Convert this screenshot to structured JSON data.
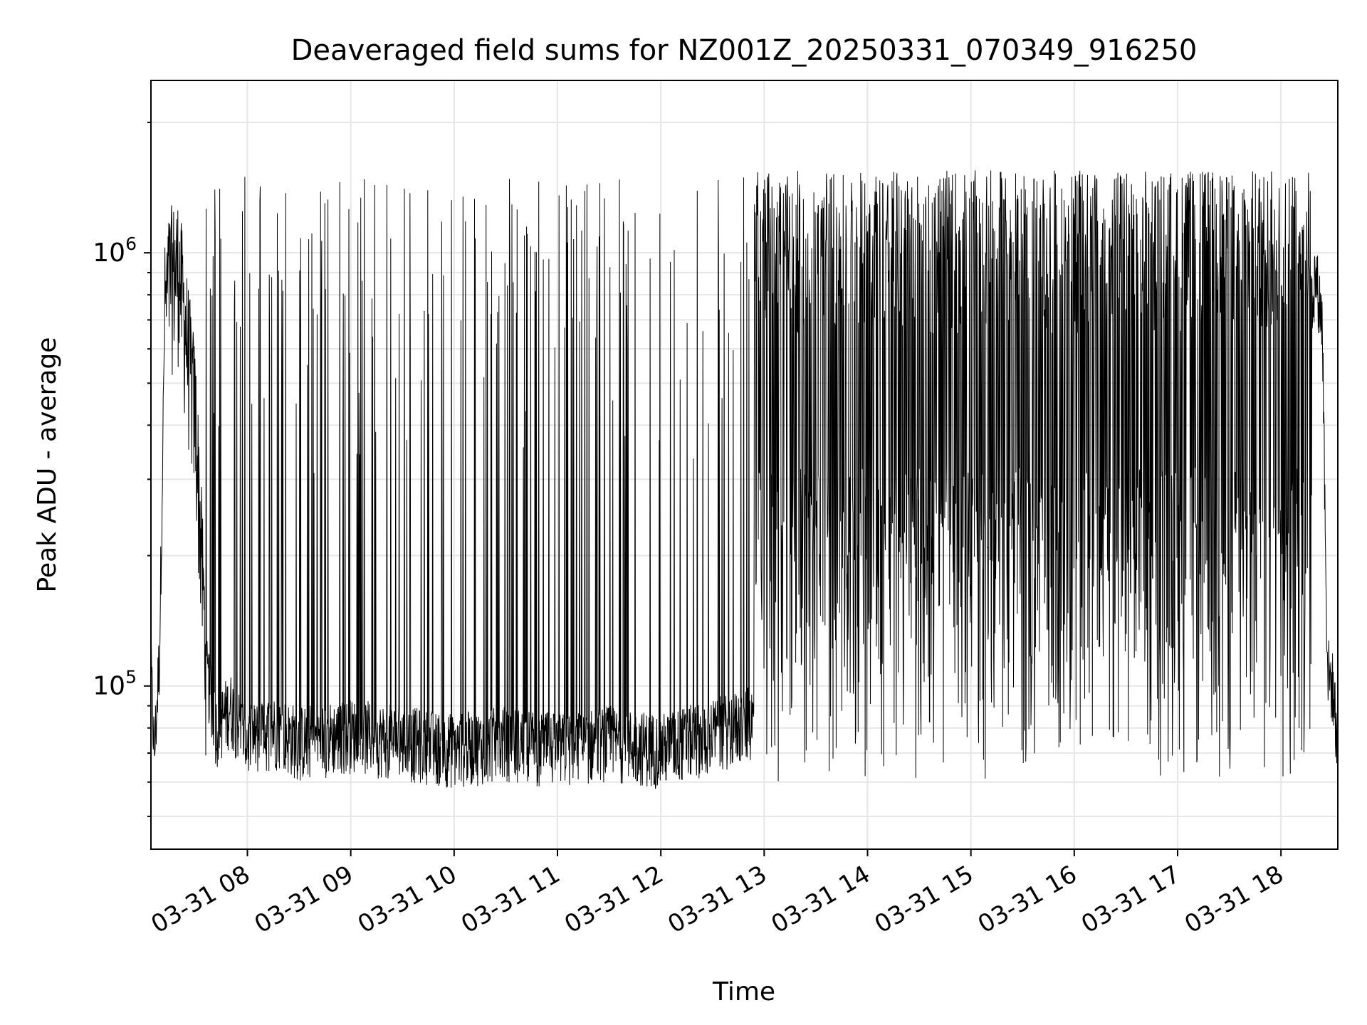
{
  "chart_data": {
    "type": "line",
    "title": "Deaveraged field sums for NZ001Z_20250331_070349_916250",
    "xlabel": "Time",
    "ylabel": "Peak ADU - average",
    "y_scale": "log",
    "grid": true,
    "legend": "none",
    "x_tick_labels": [
      "03-31 08",
      "03-31 09",
      "03-31 10",
      "03-31 11",
      "03-31 12",
      "03-31 13",
      "03-31 14",
      "03-31 15",
      "03-31 16",
      "03-31 17",
      "03-31 18"
    ],
    "y_tick_labels": [
      {
        "base": "10",
        "exp": "5",
        "value": 100000
      },
      {
        "base": "10",
        "exp": "6",
        "value": 1000000
      }
    ],
    "xlim": [
      "2025-03-31 07:04",
      "2025-03-31 18:33"
    ],
    "ylim": [
      42000,
      2500000
    ],
    "line_color": "#000000",
    "series": [
      {
        "x": [
          "2025-03-31 07:04",
          "2025-03-31 07:06",
          "2025-03-31 07:09",
          "2025-03-31 07:12",
          "2025-03-31 07:15",
          "2025-03-31 07:20",
          "2025-03-31 07:25",
          "2025-03-31 07:30",
          "2025-03-31 07:36",
          "2025-03-31 07:42",
          "2025-03-31 07:50",
          "2025-03-31 08:00",
          "2025-03-31 08:15",
          "2025-03-31 08:30",
          "2025-03-31 09:00",
          "2025-03-31 09:30",
          "2025-03-31 10:00",
          "2025-03-31 10:30",
          "2025-03-31 11:00",
          "2025-03-31 11:30",
          "2025-03-31 12:00",
          "2025-03-31 12:30",
          "2025-03-31 13:00",
          "2025-03-31 13:30",
          "2025-03-31 14:00",
          "2025-03-31 14:30",
          "2025-03-31 15:00",
          "2025-03-31 15:30",
          "2025-03-31 16:00",
          "2025-03-31 16:30",
          "2025-03-31 17:00",
          "2025-03-31 17:30",
          "2025-03-31 18:00",
          "2025-03-31 18:15",
          "2025-03-31 18:20",
          "2025-03-31 18:24",
          "2025-03-31 18:27",
          "2025-03-31 18:30",
          "2025-03-31 18:33"
        ],
        "y": [
          110000,
          70000,
          120000,
          700000,
          850000,
          900000,
          600000,
          400000,
          110000,
          80000,
          90000,
          75000,
          80000,
          75000,
          78000,
          75000,
          72000,
          75000,
          72000,
          75000,
          72000,
          78000,
          85000,
          700000,
          800000,
          700000,
          750000,
          700000,
          750000,
          700000,
          800000,
          700000,
          600000,
          650000,
          900000,
          700000,
          110000,
          100000,
          75000
        ]
      }
    ]
  }
}
